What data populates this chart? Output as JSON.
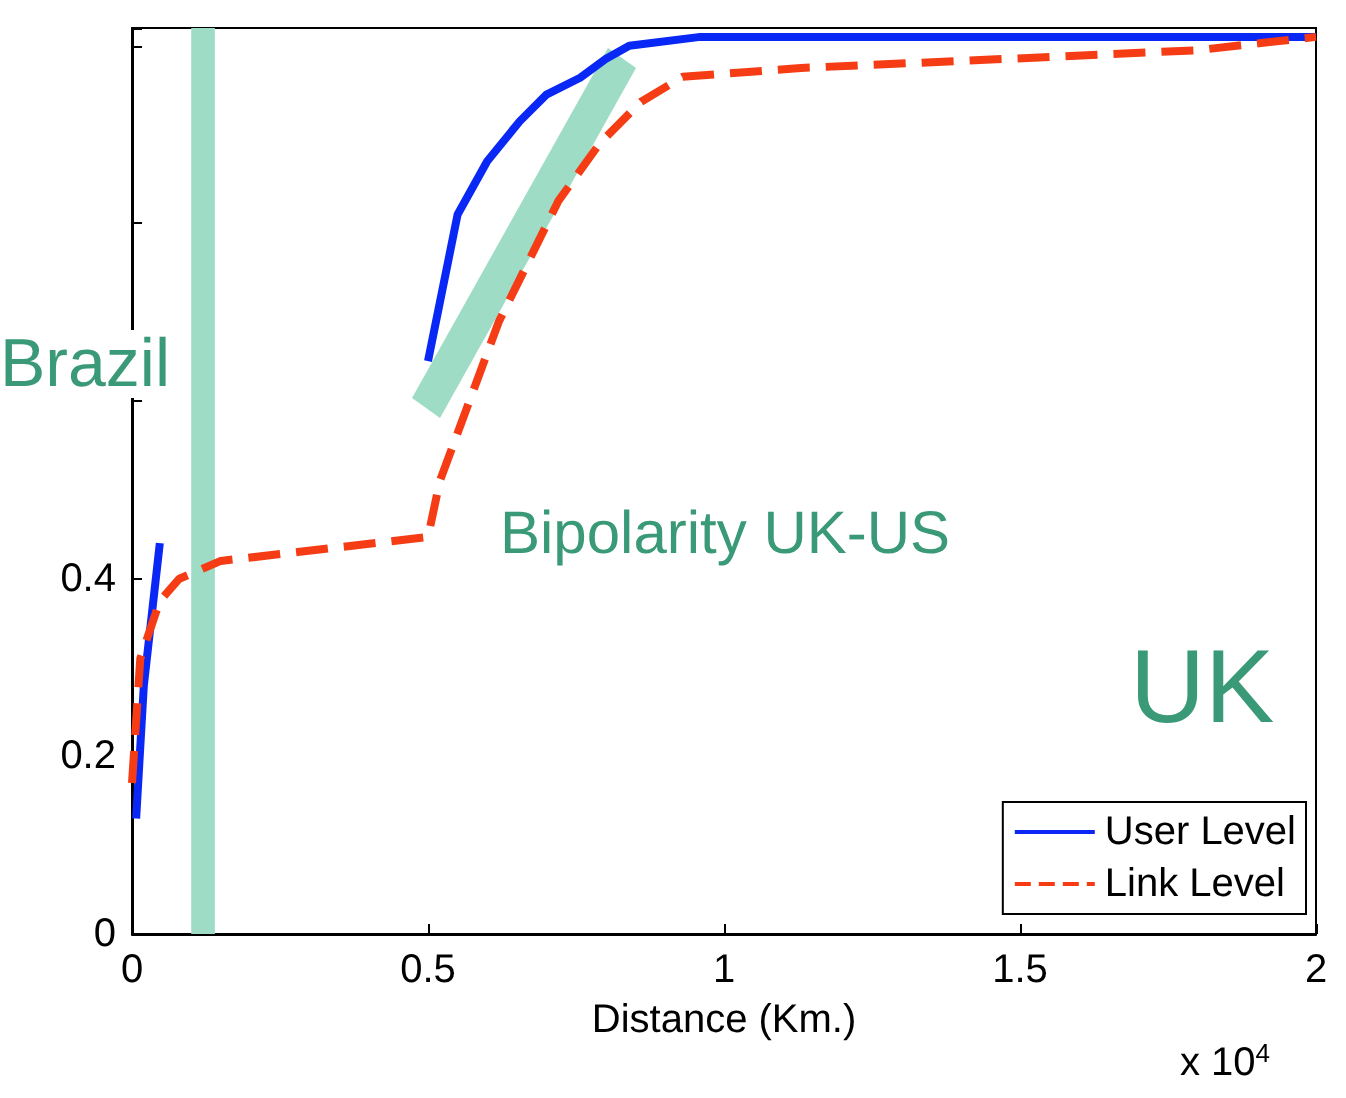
{
  "chart_data": {
    "type": "line",
    "xlabel": "Distance (Km.)",
    "xlim": [
      0,
      2
    ],
    "xticks": [
      0,
      0.5,
      1,
      1.5,
      2
    ],
    "ylim": [
      0,
      1.02
    ],
    "yticks": [
      0,
      0.2,
      0.4,
      {
        "value": 0.6,
        "label": null
      },
      {
        "value": 0.8,
        "label": null
      }
    ],
    "grid": false,
    "legend": "bottom right",
    "line_style": "solid",
    "marker": "none",
    "series": [
      {
        "name": "User Level",
        "color": "#0a28f5",
        "x": [
          0.007,
          0.02,
          0.047,
          null,
          0.5,
          0.55,
          0.6,
          0.655,
          0.7,
          0.757,
          0.8,
          0.84,
          0.96,
          1.5,
          2
        ],
        "values": [
          0.13,
          0.28,
          0.44,
          null,
          0.645,
          0.81,
          0.87,
          0.915,
          0.945,
          0.964,
          0.985,
          1.0,
          1.01,
          1.01,
          1.01
        ]
      },
      {
        "name": "Link Level",
        "color": "#f53c14",
        "line_style": "dashed",
        "x": [
          0,
          0.014,
          0.047,
          0.08,
          0.15,
          0.28,
          0.5,
          0.52,
          0.62,
          0.72,
          0.79,
          0.86,
          0.93,
          1.13,
          1.47,
          1.8,
          2
        ],
        "values": [
          0.17,
          0.31,
          0.375,
          0.4,
          0.42,
          0.43,
          0.447,
          0.51,
          0.69,
          0.825,
          0.89,
          0.937,
          0.965,
          0.975,
          0.985,
          0.995,
          1.01
        ]
      }
    ],
    "bands": [
      {
        "axis": "x",
        "from": 0.1,
        "to": 0.14,
        "color": "#9fdcc6"
      }
    ],
    "annotations": [
      "Brazil",
      "Bipolarity UK-US",
      "UK",
      "x 10$^{4}$"
    ]
  }
}
